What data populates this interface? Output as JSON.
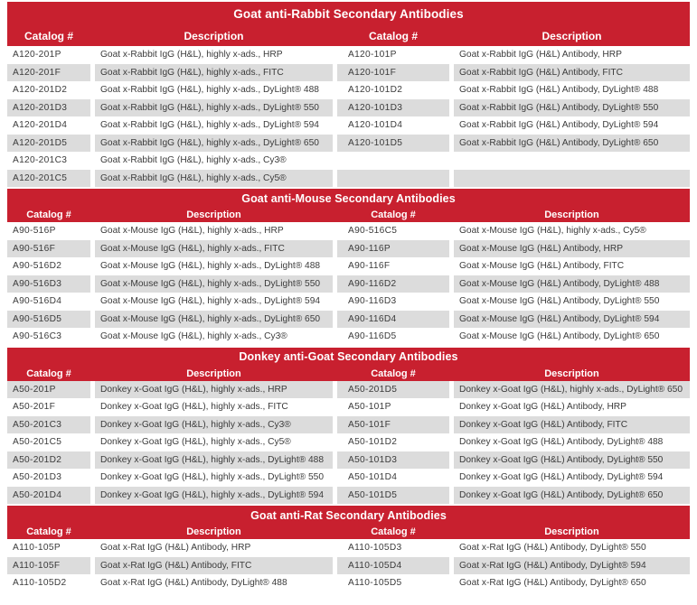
{
  "colors": {
    "header_red": "#C8202F",
    "row_gray": "#DCDCDC",
    "row_white": "#FFFFFF",
    "header_text": "#FFFFFF",
    "body_text": "#3B3B3B"
  },
  "column_headers": [
    "Catalog #",
    "Description",
    "Catalog #",
    "Description"
  ],
  "sections": [
    {
      "title": "Goat anti-Rabbit Secondary Antibodies",
      "stripe_start": "white",
      "rows": [
        {
          "cat1": "A120-201P",
          "desc1": "Goat x-Rabbit IgG (H&L), highly x-ads., HRP",
          "cat2": "A120-101P",
          "desc2": "Goat x-Rabbit IgG (H&L) Antibody, HRP"
        },
        {
          "cat1": "A120-201F",
          "desc1": "Goat x-Rabbit IgG (H&L), highly x-ads., FITC",
          "cat2": "A120-101F",
          "desc2": "Goat x-Rabbit IgG (H&L) Antibody, FITC"
        },
        {
          "cat1": "A120-201D2",
          "desc1": "Goat x-Rabbit IgG (H&L), highly x-ads., DyLight® 488",
          "cat2": "A120-101D2",
          "desc2": "Goat x-Rabbit IgG (H&L) Antibody, DyLight® 488"
        },
        {
          "cat1": "A120-201D3",
          "desc1": "Goat x-Rabbit IgG (H&L), highly x-ads., DyLight® 550",
          "cat2": "A120-101D3",
          "desc2": "Goat x-Rabbit IgG (H&L) Antibody, DyLight® 550"
        },
        {
          "cat1": "A120-201D4",
          "desc1": "Goat x-Rabbit IgG (H&L), highly x-ads., DyLight® 594",
          "cat2": "A120-101D4",
          "desc2": "Goat x-Rabbit IgG (H&L) Antibody, DyLight® 594"
        },
        {
          "cat1": "A120-201D5",
          "desc1": "Goat x-Rabbit IgG (H&L), highly x-ads., DyLight® 650",
          "cat2": "A120-101D5",
          "desc2": "Goat x-Rabbit IgG (H&L) Antibody, DyLight® 650"
        },
        {
          "cat1": "A120-201C3",
          "desc1": "Goat x-Rabbit IgG (H&L), highly x-ads., Cy3®",
          "cat2": "",
          "desc2": ""
        },
        {
          "cat1": "A120-201C5",
          "desc1": "Goat x-Rabbit IgG (H&L), highly x-ads., Cy5®",
          "cat2": "",
          "desc2": ""
        }
      ]
    },
    {
      "title": "Goat anti-Mouse Secondary Antibodies",
      "stripe_start": "white",
      "rows": [
        {
          "cat1": "A90-516P",
          "desc1": "Goat x-Mouse IgG (H&L), highly x-ads., HRP",
          "cat2": "A90-516C5",
          "desc2": "Goat x-Mouse IgG (H&L), highly x-ads., Cy5®"
        },
        {
          "cat1": "A90-516F",
          "desc1": "Goat x-Mouse IgG (H&L), highly x-ads., FITC",
          "cat2": "A90-116P",
          "desc2": "Goat x-Mouse IgG (H&L) Antibody, HRP"
        },
        {
          "cat1": "A90-516D2",
          "desc1": "Goat x-Mouse IgG (H&L), highly x-ads., DyLight® 488",
          "cat2": "A90-116F",
          "desc2": "Goat x-Mouse IgG (H&L) Antibody, FITC"
        },
        {
          "cat1": "A90-516D3",
          "desc1": "Goat x-Mouse IgG (H&L), highly x-ads., DyLight® 550",
          "cat2": "A90-116D2",
          "desc2": "Goat x-Mouse IgG (H&L) Antibody, DyLight® 488"
        },
        {
          "cat1": "A90-516D4",
          "desc1": "Goat x-Mouse IgG (H&L), highly x-ads., DyLight® 594",
          "cat2": "A90-116D3",
          "desc2": "Goat x-Mouse IgG (H&L) Antibody, DyLight® 550"
        },
        {
          "cat1": "A90-516D5",
          "desc1": "Goat x-Mouse IgG (H&L), highly x-ads., DyLight® 650",
          "cat2": "A90-116D4",
          "desc2": "Goat x-Mouse IgG (H&L) Antibody, DyLight® 594"
        },
        {
          "cat1": "A90-516C3",
          "desc1": "Goat x-Mouse IgG (H&L), highly x-ads., Cy3®",
          "cat2": "A90-116D5",
          "desc2": "Goat x-Mouse IgG (H&L) Antibody, DyLight® 650"
        }
      ]
    },
    {
      "title": "Donkey anti-Goat Secondary Antibodies",
      "stripe_start": "gray",
      "rows": [
        {
          "cat1": "A50-201P",
          "desc1": "Donkey x-Goat IgG (H&L), highly x-ads., HRP",
          "cat2": "A50-201D5",
          "desc2": "Donkey x-Goat IgG (H&L), highly x-ads., DyLight® 650"
        },
        {
          "cat1": "A50-201F",
          "desc1": "Donkey x-Goat IgG (H&L), highly x-ads., FITC",
          "cat2": "A50-101P",
          "desc2": "Donkey x-Goat IgG (H&L) Antibody, HRP"
        },
        {
          "cat1": "A50-201C3",
          "desc1": "Donkey x-Goat IgG (H&L), highly x-ads., Cy3®",
          "cat2": "A50-101F",
          "desc2": "Donkey x-Goat IgG (H&L) Antibody, FITC"
        },
        {
          "cat1": "A50-201C5",
          "desc1": "Donkey x-Goat IgG (H&L), highly x-ads., Cy5®",
          "cat2": "A50-101D2",
          "desc2": "Donkey x-Goat IgG (H&L) Antibody, DyLight® 488"
        },
        {
          "cat1": "A50-201D2",
          "desc1": "Donkey x-Goat IgG (H&L), highly x-ads., DyLight® 488",
          "cat2": "A50-101D3",
          "desc2": "Donkey x-Goat IgG (H&L) Antibody, DyLight® 550"
        },
        {
          "cat1": "A50-201D3",
          "desc1": "Donkey x-Goat IgG (H&L), highly x-ads., DyLight® 550",
          "cat2": "A50-101D4",
          "desc2": "Donkey x-Goat IgG (H&L) Antibody, DyLight® 594"
        },
        {
          "cat1": "A50-201D4",
          "desc1": "Donkey x-Goat IgG (H&L), highly x-ads., DyLight® 594",
          "cat2": "A50-101D5",
          "desc2": "Donkey x-Goat IgG (H&L) Antibody, DyLight® 650"
        }
      ]
    },
    {
      "title": "Goat anti-Rat Secondary Antibodies",
      "stripe_start": "white",
      "rows": [
        {
          "cat1": "A110-105P",
          "desc1": "Goat x-Rat IgG (H&L) Antibody, HRP",
          "cat2": "A110-105D3",
          "desc2": "Goat x-Rat IgG (H&L) Antibody, DyLight® 550"
        },
        {
          "cat1": "A110-105F",
          "desc1": "Goat x-Rat IgG (H&L) Antibody, FITC",
          "cat2": "A110-105D4",
          "desc2": "Goat x-Rat IgG (H&L) Antibody, DyLight® 594"
        },
        {
          "cat1": "A110-105D2",
          "desc1": "Goat x-Rat IgG (H&L) Antibody, DyLight® 488",
          "cat2": "A110-105D5",
          "desc2": "Goat x-Rat IgG (H&L) Antibody, DyLight® 650"
        }
      ]
    }
  ]
}
